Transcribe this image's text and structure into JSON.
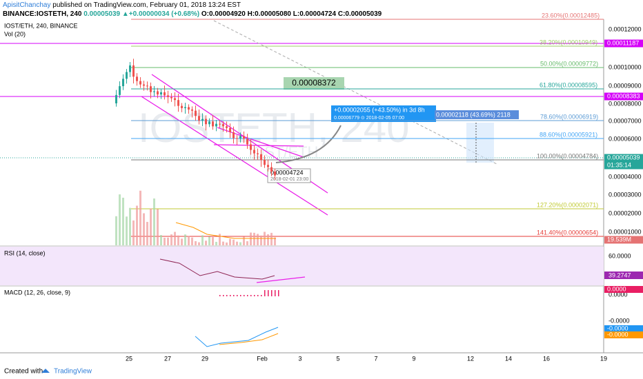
{
  "header": {
    "author": "ApisitChanchay",
    "published": "published on TradingView.com, February 01, 2018 13:24 EST"
  },
  "symbol_line": {
    "symbol": "BINANCE:IOSTETH, 240",
    "last": "0.00005039",
    "change": "+0.00000034 (+0.68%)",
    "open": "O:0.00004920",
    "high": "H:0.00005080",
    "low": "L:0.00004724",
    "close": "C:0.00005039"
  },
  "legend": {
    "series": "IOST/ETH, 240, BINANCE",
    "volume": "Vol (20)"
  },
  "watermark": {
    "main": "IOSTETH, 240",
    "sub": "IOST/ETH"
  },
  "price_axis": {
    "labels": [
      "0.00012000",
      "0.00010000",
      "0.00009000",
      "0.00008000",
      "0.00007000",
      "0.00006000",
      "0.00004000",
      "0.00003000",
      "0.00002000",
      "0.00001000"
    ],
    "tags": [
      "0.00011187",
      "0.00008383",
      "0.00005039",
      "01:35:14",
      "19.539M"
    ]
  },
  "fib_levels": [
    "23.60%(0.00012485)",
    "38.20%(0.00010949)",
    "50.00%(0.00009772)",
    "61.80%(0.00008595)",
    "78.60%(0.00006919)",
    "88.60%(0.00005921)",
    "100.00%(0.00004784)",
    "127.20%(0.00002071)",
    "141.40%(0.00000654)"
  ],
  "annotations": {
    "callout": "0.00008372",
    "projection": "+0.00002055 (+43.50%) in 3d 8h",
    "projection_detail": "0.00006779 ⊙ 2018-02-05 07:00",
    "range": "0.00002118 (43.69%) 2118",
    "low_price": "0.00004724",
    "low_date": "2018-02-01 23:00"
  },
  "rsi": {
    "title": "RSI (14, close)",
    "level": "60.0000",
    "tag": "39.2747"
  },
  "macd": {
    "title": "MACD (12, 26, close, 9)",
    "level": "0.0000",
    "tags": [
      "0.0000",
      "-0.0000",
      "-0.0000"
    ],
    "lower_level": "-0.0000"
  },
  "date_axis": [
    "25",
    "27",
    "29",
    "Feb",
    "3",
    "5",
    "7",
    "9",
    "12",
    "14",
    "16",
    "19"
  ],
  "footer": {
    "created": "Created with",
    "brand": "TradingView"
  }
}
